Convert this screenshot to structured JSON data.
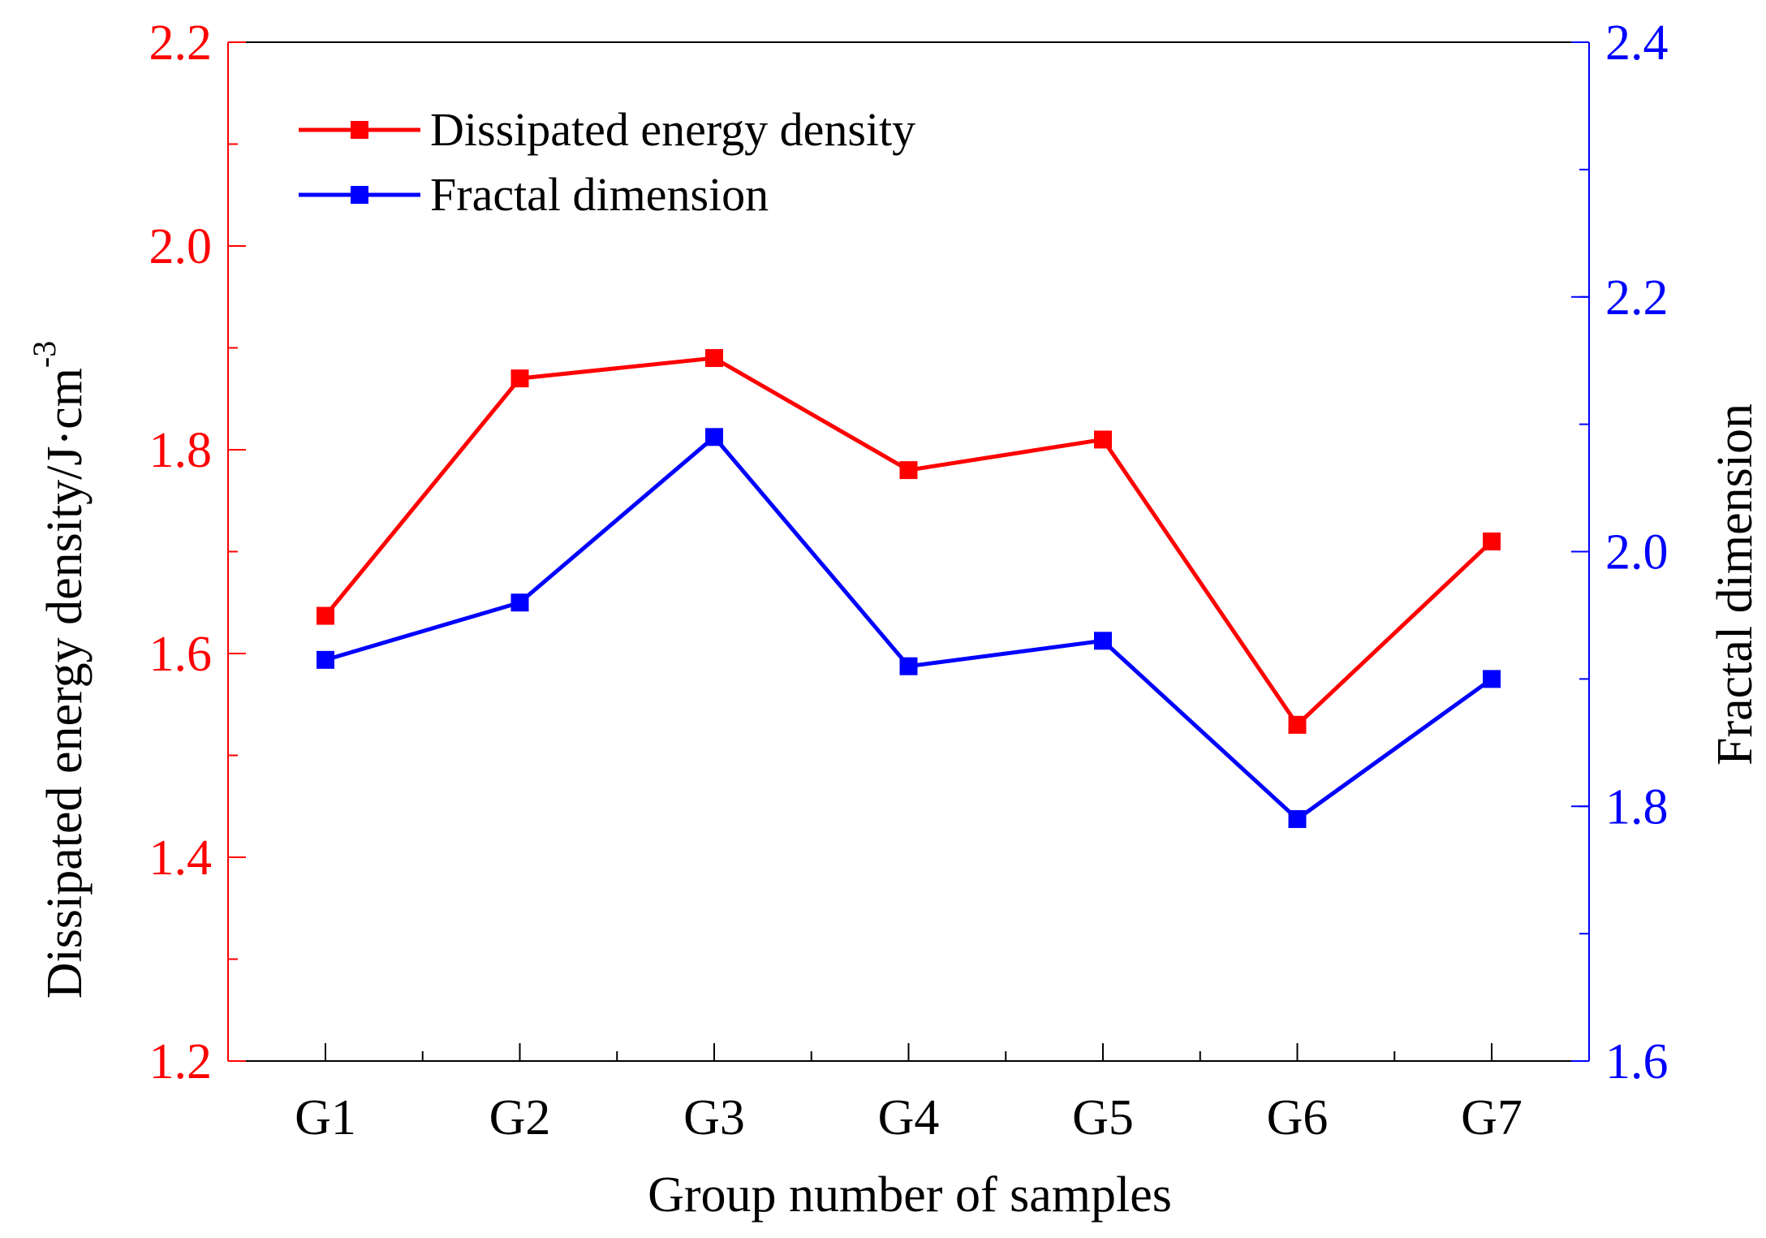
{
  "chart_data": {
    "type": "line",
    "categories": [
      "G1",
      "G2",
      "G3",
      "G4",
      "G5",
      "G6",
      "G7"
    ],
    "xlabel": "Group number of samples",
    "ylabel_left": {
      "text": "Dissipated energy density/J·cm",
      "superscript": "-3"
    },
    "ylabel_right": "Fractal dimension",
    "y_left": {
      "min": 1.2,
      "max": 2.2,
      "major_ticks": [
        1.2,
        1.4,
        1.6,
        1.8,
        2.0,
        2.2
      ],
      "tick_labels": [
        "1.2",
        "1.4",
        "1.6",
        "1.8",
        "2.0",
        "2.2"
      ],
      "minor_step": 0.1,
      "color": "#ff0000"
    },
    "y_right": {
      "min": 1.6,
      "max": 2.4,
      "major_ticks": [
        1.6,
        1.8,
        2.0,
        2.2,
        2.4
      ],
      "tick_labels": [
        "1.6",
        "1.8",
        "2.0",
        "2.2",
        "2.4"
      ],
      "minor_step": 0.1,
      "color": "#0000ff"
    },
    "series": [
      {
        "name": "Dissipated energy density",
        "axis": "left",
        "color": "#ff0000",
        "marker": "square",
        "values": [
          1.637,
          1.87,
          1.89,
          1.78,
          1.81,
          1.53,
          1.71
        ]
      },
      {
        "name": "Fractal dimension",
        "axis": "right",
        "color": "#0000ff",
        "marker": "square",
        "values": [
          1.915,
          1.96,
          2.09,
          1.91,
          1.93,
          1.79,
          1.9
        ]
      }
    ],
    "legend": {
      "position": "top-left"
    },
    "grid": false
  }
}
